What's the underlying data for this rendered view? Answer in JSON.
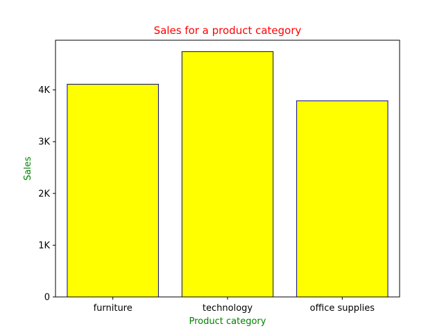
{
  "chart_data": {
    "type": "bar",
    "title": "Sales for a product category",
    "xlabel": "Product category",
    "ylabel": "Sales",
    "categories": [
      "furniture",
      "technology",
      "office supplies"
    ],
    "values": [
      4110,
      4740,
      3790
    ],
    "ylim": [
      0,
      4960
    ],
    "yticks": [
      0,
      1000,
      2000,
      3000,
      4000
    ],
    "ytick_labels": [
      "0",
      "1K",
      "2K",
      "3K",
      "4K"
    ],
    "grid": false,
    "legend": "none",
    "colors": {
      "bar_fill": "#ffff00",
      "bar_edge": "#00008b",
      "title": "#ff0000",
      "axis_label": "#008000",
      "axes": "#000000"
    }
  }
}
